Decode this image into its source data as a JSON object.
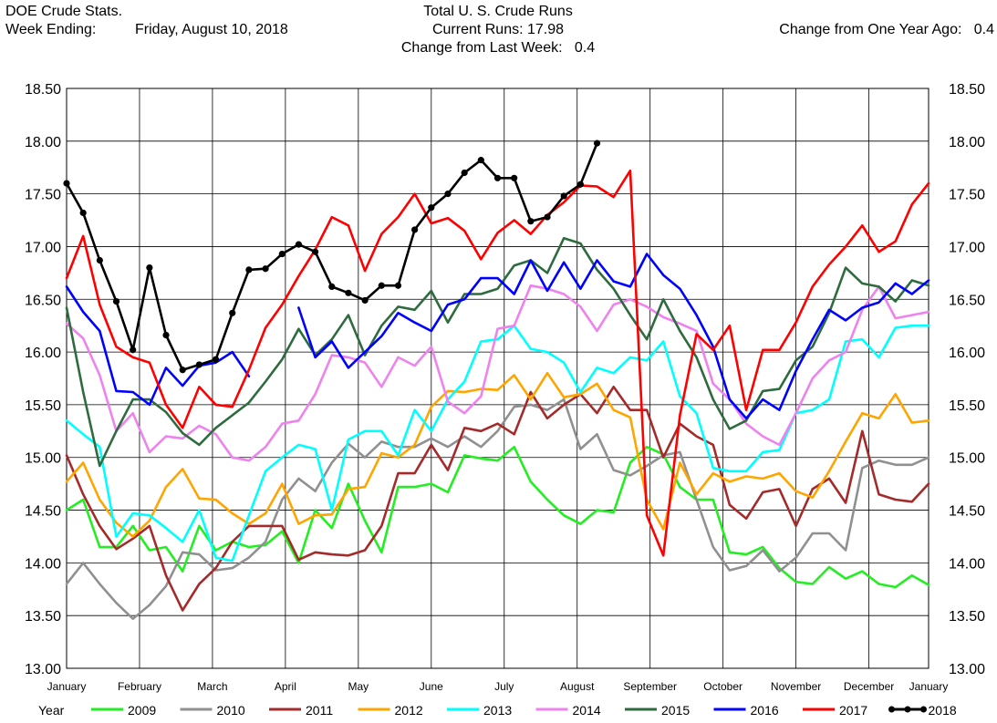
{
  "header": {
    "source": "DOE Crude Stats.",
    "week_label": "Week Ending:",
    "week_value": "Friday, August 10, 2018",
    "title": "Total U. S. Crude Runs",
    "current": "Current Runs: 17.98",
    "change_week": "Change from Last Week:   0.4",
    "change_year": "Change from One Year Ago:   0.4"
  },
  "chart_data": {
    "type": "line",
    "title": "Total U. S. Crude Runs",
    "ylim": [
      13.0,
      18.5
    ],
    "y_ticks": [
      "13.00",
      "13.50",
      "14.00",
      "14.50",
      "15.00",
      "15.50",
      "16.00",
      "16.50",
      "17.00",
      "17.50",
      "18.00",
      "18.50"
    ],
    "x_range": [
      1,
      53
    ],
    "months": [
      {
        "label": "January",
        "week": 1
      },
      {
        "label": "February",
        "week": 5.4
      },
      {
        "label": "March",
        "week": 9.8
      },
      {
        "label": "April",
        "week": 14.2
      },
      {
        "label": "May",
        "week": 18.6
      },
      {
        "label": "June",
        "week": 23
      },
      {
        "label": "July",
        "week": 27.4
      },
      {
        "label": "August",
        "week": 31.8
      },
      {
        "label": "September",
        "week": 36.2
      },
      {
        "label": "October",
        "week": 40.6
      },
      {
        "label": "November",
        "week": 45
      },
      {
        "label": "December",
        "week": 49.4
      },
      {
        "label": "January",
        "week": 53
      }
    ],
    "grid": true,
    "legend_title": "Year",
    "legend_position": "bottom",
    "series": [
      {
        "name": "2009",
        "color": "#22ee22",
        "markers": false,
        "values": [
          14.5,
          14.6,
          14.15,
          14.15,
          14.35,
          14.12,
          14.15,
          13.92,
          14.35,
          14.12,
          14.2,
          14.15,
          14.17,
          14.3,
          14.0,
          14.5,
          14.33,
          14.75,
          14.4,
          14.1,
          14.72,
          14.72,
          14.75,
          14.67,
          15.02,
          14.99,
          14.97,
          15.1,
          14.77,
          14.6,
          14.45,
          14.37,
          14.5,
          14.48,
          14.95,
          15.1,
          15.03,
          14.72,
          14.6,
          14.6,
          14.1,
          14.08,
          14.15,
          13.95,
          13.82,
          13.8,
          13.96,
          13.85,
          13.92,
          13.8,
          13.77,
          13.88,
          13.79
        ]
      },
      {
        "name": "2010",
        "color": "#909090",
        "markers": false,
        "values": [
          13.8,
          14.0,
          13.8,
          13.62,
          13.47,
          13.6,
          13.78,
          14.1,
          14.08,
          13.93,
          13.95,
          14.05,
          14.2,
          14.6,
          14.8,
          14.68,
          14.95,
          15.13,
          15.0,
          15.15,
          15.1,
          15.1,
          15.18,
          15.1,
          15.2,
          15.1,
          15.25,
          15.48,
          15.5,
          15.45,
          15.55,
          15.08,
          15.22,
          14.88,
          14.83,
          14.92,
          15.02,
          15.05,
          14.6,
          14.15,
          13.93,
          13.97,
          14.12,
          13.92,
          14.05,
          14.28,
          14.28,
          14.12,
          14.9,
          14.97,
          14.93,
          14.93,
          15.0
        ]
      },
      {
        "name": "2011",
        "color": "#a52a2a",
        "markers": false,
        "values": [
          15.02,
          14.65,
          14.35,
          14.13,
          14.23,
          14.35,
          13.88,
          13.55,
          13.8,
          13.95,
          14.2,
          14.35,
          14.35,
          14.35,
          14.03,
          14.1,
          14.08,
          14.07,
          14.12,
          14.35,
          14.85,
          14.85,
          15.12,
          14.88,
          15.28,
          15.25,
          15.32,
          15.22,
          15.62,
          15.37,
          15.5,
          15.6,
          15.42,
          15.67,
          15.45,
          15.45,
          15.0,
          15.32,
          15.2,
          15.12,
          14.55,
          14.42,
          14.67,
          14.7,
          14.35,
          14.7,
          14.8,
          14.57,
          15.25,
          14.65,
          14.6,
          14.58,
          14.75
        ]
      },
      {
        "name": "2012",
        "color": "#ffa500",
        "markers": false,
        "values": [
          14.77,
          14.95,
          14.6,
          14.38,
          14.25,
          14.4,
          14.72,
          14.89,
          14.61,
          14.6,
          14.47,
          14.37,
          14.47,
          14.75,
          14.37,
          14.45,
          14.46,
          14.7,
          14.72,
          15.04,
          15.0,
          15.12,
          15.48,
          15.63,
          15.62,
          15.65,
          15.64,
          15.78,
          15.55,
          15.8,
          15.57,
          15.6,
          15.7,
          15.45,
          15.38,
          14.6,
          14.32,
          14.95,
          14.65,
          14.85,
          14.77,
          14.82,
          14.8,
          14.85,
          14.68,
          14.62,
          14.87,
          15.15,
          15.42,
          15.37,
          15.6,
          15.33,
          15.35
        ]
      },
      {
        "name": "2013",
        "color": "#00ffff",
        "markers": false,
        "values": [
          15.35,
          15.22,
          15.1,
          14.25,
          14.47,
          14.45,
          14.33,
          14.2,
          14.5,
          14.05,
          14.02,
          14.45,
          14.87,
          15.0,
          15.12,
          15.08,
          14.5,
          15.17,
          15.25,
          15.25,
          15.02,
          15.45,
          15.25,
          15.55,
          15.72,
          16.1,
          16.12,
          16.25,
          16.03,
          16.0,
          15.9,
          15.62,
          15.85,
          15.8,
          15.95,
          15.92,
          16.1,
          15.58,
          15.42,
          14.9,
          14.87,
          14.87,
          15.05,
          15.07,
          15.42,
          15.45,
          15.55,
          16.1,
          16.12,
          15.95,
          16.23,
          16.25,
          16.25
        ]
      },
      {
        "name": "2014",
        "color": "#ee82ee",
        "markers": false,
        "values": [
          16.27,
          16.13,
          15.78,
          15.25,
          15.42,
          15.05,
          15.2,
          15.18,
          15.3,
          15.22,
          15.0,
          14.97,
          15.1,
          15.32,
          15.35,
          15.6,
          15.97,
          15.95,
          15.9,
          15.67,
          15.95,
          15.87,
          16.05,
          15.53,
          15.42,
          15.58,
          16.22,
          16.25,
          16.63,
          16.6,
          16.55,
          16.43,
          16.2,
          16.45,
          16.5,
          16.43,
          16.33,
          16.27,
          16.2,
          15.7,
          15.55,
          15.32,
          15.2,
          15.12,
          15.42,
          15.75,
          15.92,
          16.0,
          16.4,
          16.62,
          16.32,
          16.35,
          16.38
        ]
      },
      {
        "name": "2015",
        "color": "#2e6b3e",
        "markers": false,
        "values": [
          16.42,
          15.62,
          14.92,
          15.25,
          15.55,
          15.55,
          15.43,
          15.23,
          15.12,
          15.28,
          15.4,
          15.52,
          15.72,
          15.93,
          16.22,
          15.97,
          16.12,
          16.35,
          15.97,
          16.25,
          16.43,
          16.4,
          16.58,
          16.28,
          16.55,
          16.55,
          16.6,
          16.82,
          16.87,
          16.75,
          17.08,
          17.03,
          16.78,
          16.6,
          16.35,
          16.12,
          16.5,
          16.2,
          15.95,
          15.55,
          15.27,
          15.35,
          15.63,
          15.65,
          15.92,
          16.05,
          16.37,
          16.8,
          16.65,
          16.62,
          16.48,
          16.68,
          16.63
        ]
      },
      {
        "name": "2016",
        "color": "#0000ff",
        "markers": false,
        "values": [
          16.62,
          16.38,
          16.2,
          15.63,
          15.62,
          15.5,
          15.85,
          15.68,
          15.87,
          15.9,
          16.0,
          15.77,
          null,
          null,
          16.42,
          15.95,
          16.1,
          15.85,
          16.0,
          16.15,
          16.37,
          16.28,
          16.2,
          16.45,
          16.5,
          16.7,
          16.7,
          16.55,
          16.87,
          16.58,
          16.85,
          16.6,
          16.87,
          16.67,
          16.62,
          16.93,
          16.73,
          16.6,
          16.35,
          16.05,
          15.55,
          15.37,
          15.55,
          15.45,
          15.82,
          16.12,
          16.4,
          16.3,
          16.42,
          16.47,
          16.65,
          16.55,
          16.68
        ]
      },
      {
        "name": "2017",
        "color": "#ff0000",
        "markers": false,
        "values": [
          16.7,
          17.1,
          16.45,
          16.05,
          15.95,
          15.9,
          15.5,
          15.28,
          15.67,
          15.5,
          15.48,
          15.83,
          16.23,
          16.45,
          16.72,
          16.97,
          17.28,
          17.2,
          16.77,
          17.12,
          17.28,
          17.5,
          17.22,
          17.27,
          17.15,
          16.88,
          17.13,
          17.25,
          17.12,
          17.3,
          17.42,
          17.58,
          17.57,
          17.47,
          17.72,
          14.45,
          14.07,
          15.4,
          16.17,
          16.02,
          16.25,
          15.45,
          16.02,
          16.02,
          16.28,
          16.62,
          16.83,
          17.0,
          17.2,
          16.95,
          17.05,
          17.4,
          17.6
        ]
      },
      {
        "name": "2018",
        "color": "#000000",
        "markers": true,
        "values": [
          17.6,
          17.32,
          16.87,
          16.48,
          16.02,
          16.8,
          16.16,
          15.83,
          15.88,
          15.93,
          16.37,
          16.78,
          16.79,
          16.93,
          17.02,
          16.95,
          16.62,
          16.56,
          16.49,
          16.63,
          16.63,
          17.16,
          17.37,
          17.5,
          17.7,
          17.82,
          17.65,
          17.65,
          17.24,
          17.28,
          17.48,
          17.59,
          17.98
        ]
      }
    ]
  }
}
